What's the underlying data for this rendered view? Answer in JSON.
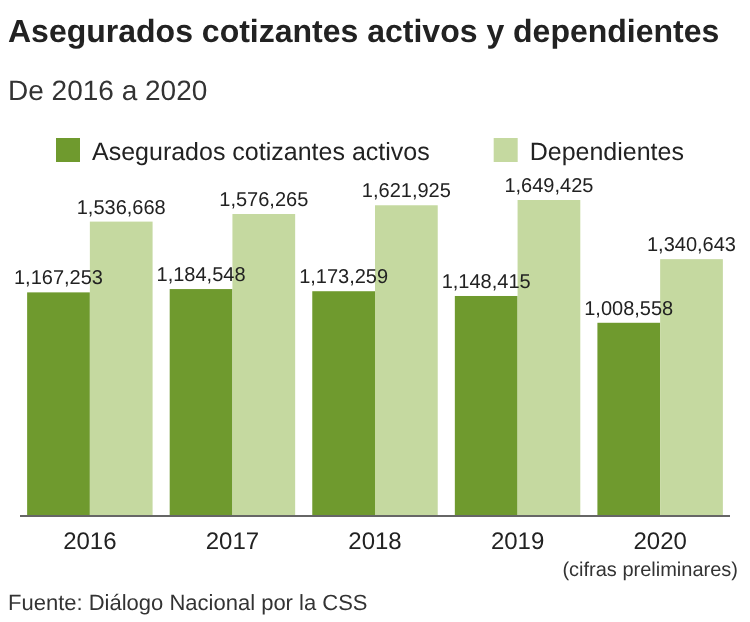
{
  "chart_data": {
    "type": "bar",
    "title": "Asegurados cotizantes activos y dependientes",
    "subtitle": "De 2016 a 2020",
    "categories": [
      "2016",
      "2017",
      "2018",
      "2019",
      "2020"
    ],
    "series": [
      {
        "name": "Asegurados cotizantes activos",
        "color": "#6f9a2e",
        "values": [
          1167253,
          1184548,
          1173259,
          1148415,
          1008558
        ],
        "value_labels": [
          "1,167,253",
          "1,184,548",
          "1,173,259",
          "1,148,415",
          "1,008,558"
        ]
      },
      {
        "name": "Dependientes",
        "color": "#c5d9a0",
        "values": [
          1536668,
          1576265,
          1621925,
          1649425,
          1340643
        ],
        "value_labels": [
          "1,536,668",
          "1,576,265",
          "1,621,925",
          "1,649,425",
          "1,340,643"
        ]
      }
    ],
    "legend": "top",
    "annotations": [
      "(cifras preliminares)",
      "Fuente: Diálogo Nacional por la CSS"
    ]
  }
}
